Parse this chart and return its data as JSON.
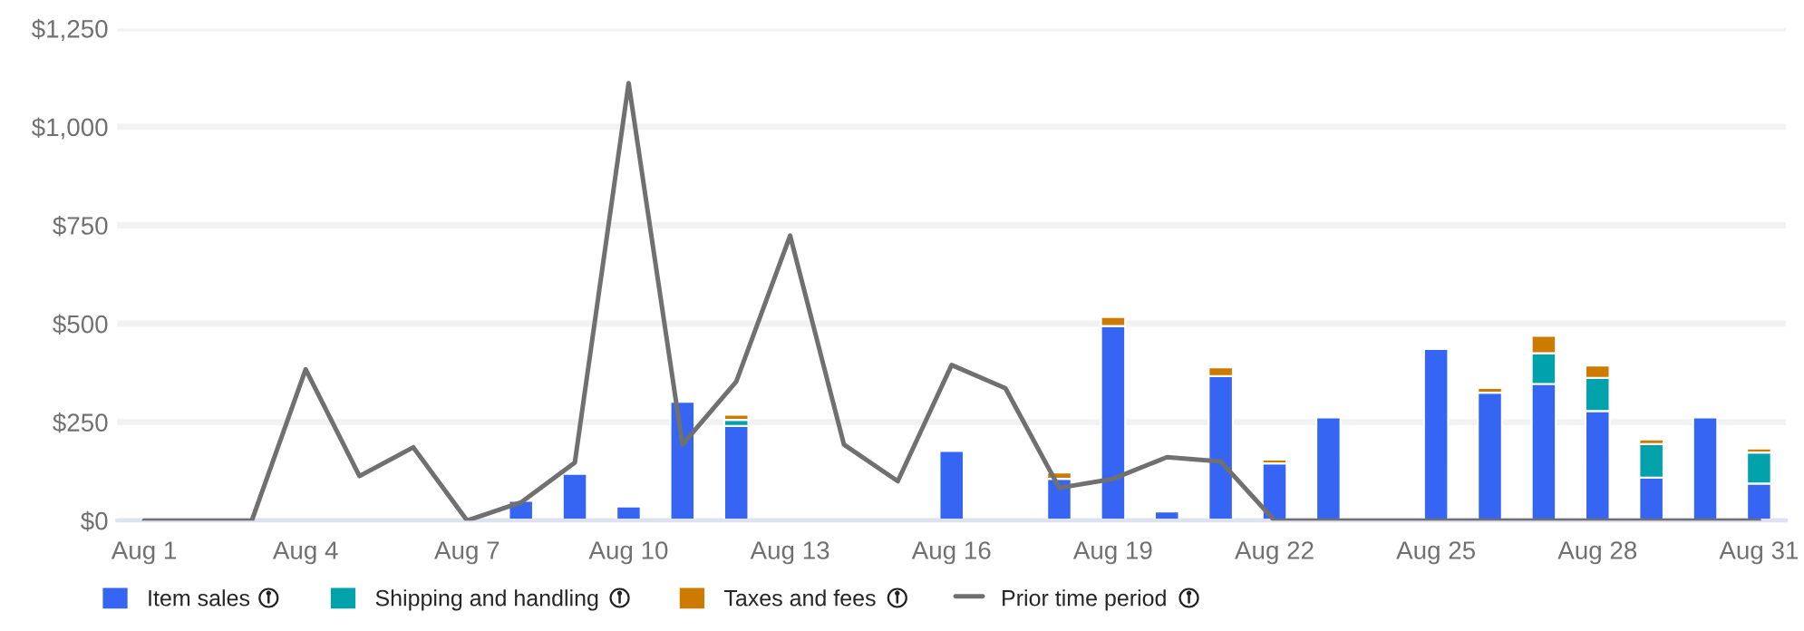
{
  "chart_data": {
    "type": "bar",
    "stacked": true,
    "categories": [
      "Aug 1",
      null,
      null,
      "Aug 4",
      null,
      null,
      "Aug 7",
      null,
      null,
      "Aug 10",
      null,
      null,
      "Aug 13",
      null,
      null,
      "Aug 16",
      null,
      null,
      "Aug 19",
      null,
      null,
      "Aug 22",
      null,
      null,
      "Aug 25",
      null,
      null,
      "Aug 28",
      null,
      null,
      "Aug 31"
    ],
    "series": [
      {
        "name": "Item sales",
        "color": "#3665f3",
        "values": [
          null,
          null,
          null,
          null,
          null,
          null,
          null,
          50,
          119,
          36,
          302,
          240,
          null,
          null,
          null,
          177,
          null,
          106,
          494,
          23,
          367,
          145,
          262,
          null,
          436,
          325,
          347,
          278,
          109,
          262,
          94
        ]
      },
      {
        "name": "Shipping and handling",
        "color": "#01a2ac",
        "values": [
          null,
          null,
          null,
          null,
          null,
          null,
          null,
          null,
          null,
          null,
          null,
          16,
          null,
          null,
          null,
          null,
          null,
          null,
          null,
          null,
          null,
          null,
          null,
          null,
          null,
          null,
          78,
          84,
          85,
          null,
          79
        ]
      },
      {
        "name": "Taxes and fees",
        "color": "#cc7a00",
        "values": [
          null,
          null,
          null,
          null,
          null,
          null,
          null,
          null,
          null,
          null,
          null,
          13,
          null,
          null,
          null,
          null,
          null,
          16,
          23,
          null,
          22,
          10,
          null,
          null,
          null,
          12,
          44,
          32,
          12,
          null,
          10
        ]
      },
      {
        "name": "Prior time period",
        "type": "line",
        "color": "#707070",
        "values": [
          0,
          0,
          0,
          384,
          113,
          186,
          0,
          46,
          147,
          1111,
          193,
          353,
          724,
          193,
          100,
          395,
          336,
          83,
          106,
          161,
          150,
          0,
          0,
          0,
          0,
          0,
          0,
          0,
          0,
          0,
          0
        ]
      }
    ],
    "ylim": [
      0,
      1250
    ],
    "yticks": [
      {
        "value": 0,
        "label": "$0"
      },
      {
        "value": 250,
        "label": "$250"
      },
      {
        "value": 500,
        "label": "$500"
      },
      {
        "value": 750,
        "label": "$750"
      },
      {
        "value": 1000,
        "label": "$1,000"
      },
      {
        "value": 1250,
        "label": "$1,250"
      }
    ],
    "grid": "y",
    "legend": "bottom",
    "line_style": "solid",
    "marker": "none"
  }
}
